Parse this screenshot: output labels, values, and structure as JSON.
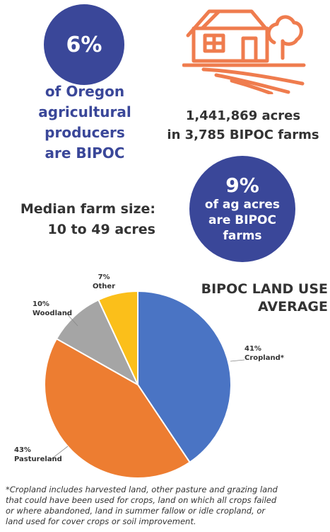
{
  "stat_producers": {
    "percent": "6%",
    "lines": [
      "of Oregon",
      "agricultural",
      "producers",
      "are BIPOC"
    ]
  },
  "stat_acres": {
    "lines": [
      "1,441,869 acres",
      "in 3,785 BIPOC farms"
    ]
  },
  "stat_ag_acres": {
    "percent": "9%",
    "lines": [
      "of ag acres",
      "are BIPOC",
      "farms"
    ]
  },
  "median": {
    "lines": [
      "Median farm size:",
      "10 to 49 acres"
    ]
  },
  "icons": [
    "farmhouse-icon"
  ],
  "colors": {
    "navy": "#3a4799",
    "orange_accent": "#ef7c4e",
    "cropland": "#4a74c4",
    "pastureland": "#ed7d31",
    "woodland": "#a5a5a5",
    "other": "#fbbf1a"
  },
  "chart_data": {
    "type": "pie",
    "title_lines": [
      "BIPOC LAND USE",
      "AVERAGE"
    ],
    "slices": [
      {
        "label": "Cropland",
        "percent_label": "41%",
        "value": 41,
        "color": "#4a74c4",
        "marker": "*"
      },
      {
        "label": "Pastureland",
        "percent_label": "43%",
        "value": 43,
        "color": "#ed7d31",
        "marker": ""
      },
      {
        "label": "Woodland",
        "percent_label": "10%",
        "value": 10,
        "color": "#a5a5a5",
        "marker": ""
      },
      {
        "label": "Other",
        "percent_label": "7%",
        "value": 7,
        "color": "#fbbf1a",
        "marker": ""
      }
    ],
    "start": "12 o'clock",
    "direction": "clockwise",
    "legend": "none"
  },
  "footnote": {
    "lines": [
      "*Cropland includes harvested land, other pasture and grazing land",
      "that could have been used for crops, land on which all crops failed",
      "or where abandoned, land in summer fallow or idle cropland, or",
      "land used for cover crops or soil improvement."
    ]
  }
}
